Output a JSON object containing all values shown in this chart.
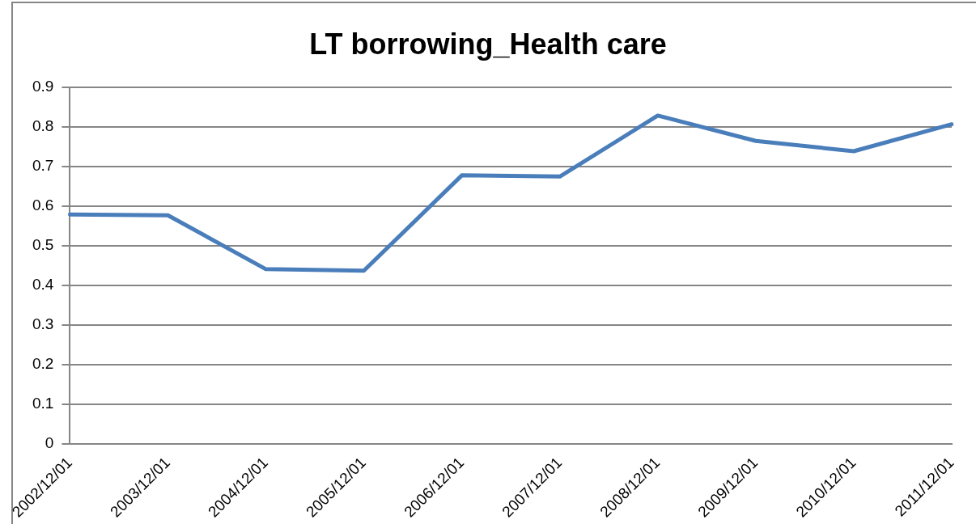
{
  "chart_data": {
    "type": "line",
    "title": "LT borrowing_Health care",
    "categories": [
      "2002/12/01",
      "2003/12/01",
      "2004/12/01",
      "2005/12/01",
      "2006/12/01",
      "2007/12/01",
      "2008/12/01",
      "2009/12/01",
      "2010/12/01",
      "2011/12/01"
    ],
    "series": [
      {
        "color": "#4a7ebb",
        "values": [
          0.579,
          0.577,
          0.441,
          0.437,
          0.678,
          0.675,
          0.829,
          0.765,
          0.739,
          0.807
        ]
      }
    ],
    "ylim": [
      0,
      0.9
    ],
    "yticks": [
      0,
      0.1,
      0.2,
      0.3,
      0.4,
      0.5,
      0.6,
      0.7,
      0.8,
      0.9
    ],
    "grid": "y",
    "legend": false,
    "marker": "none",
    "line_style": "solid"
  }
}
